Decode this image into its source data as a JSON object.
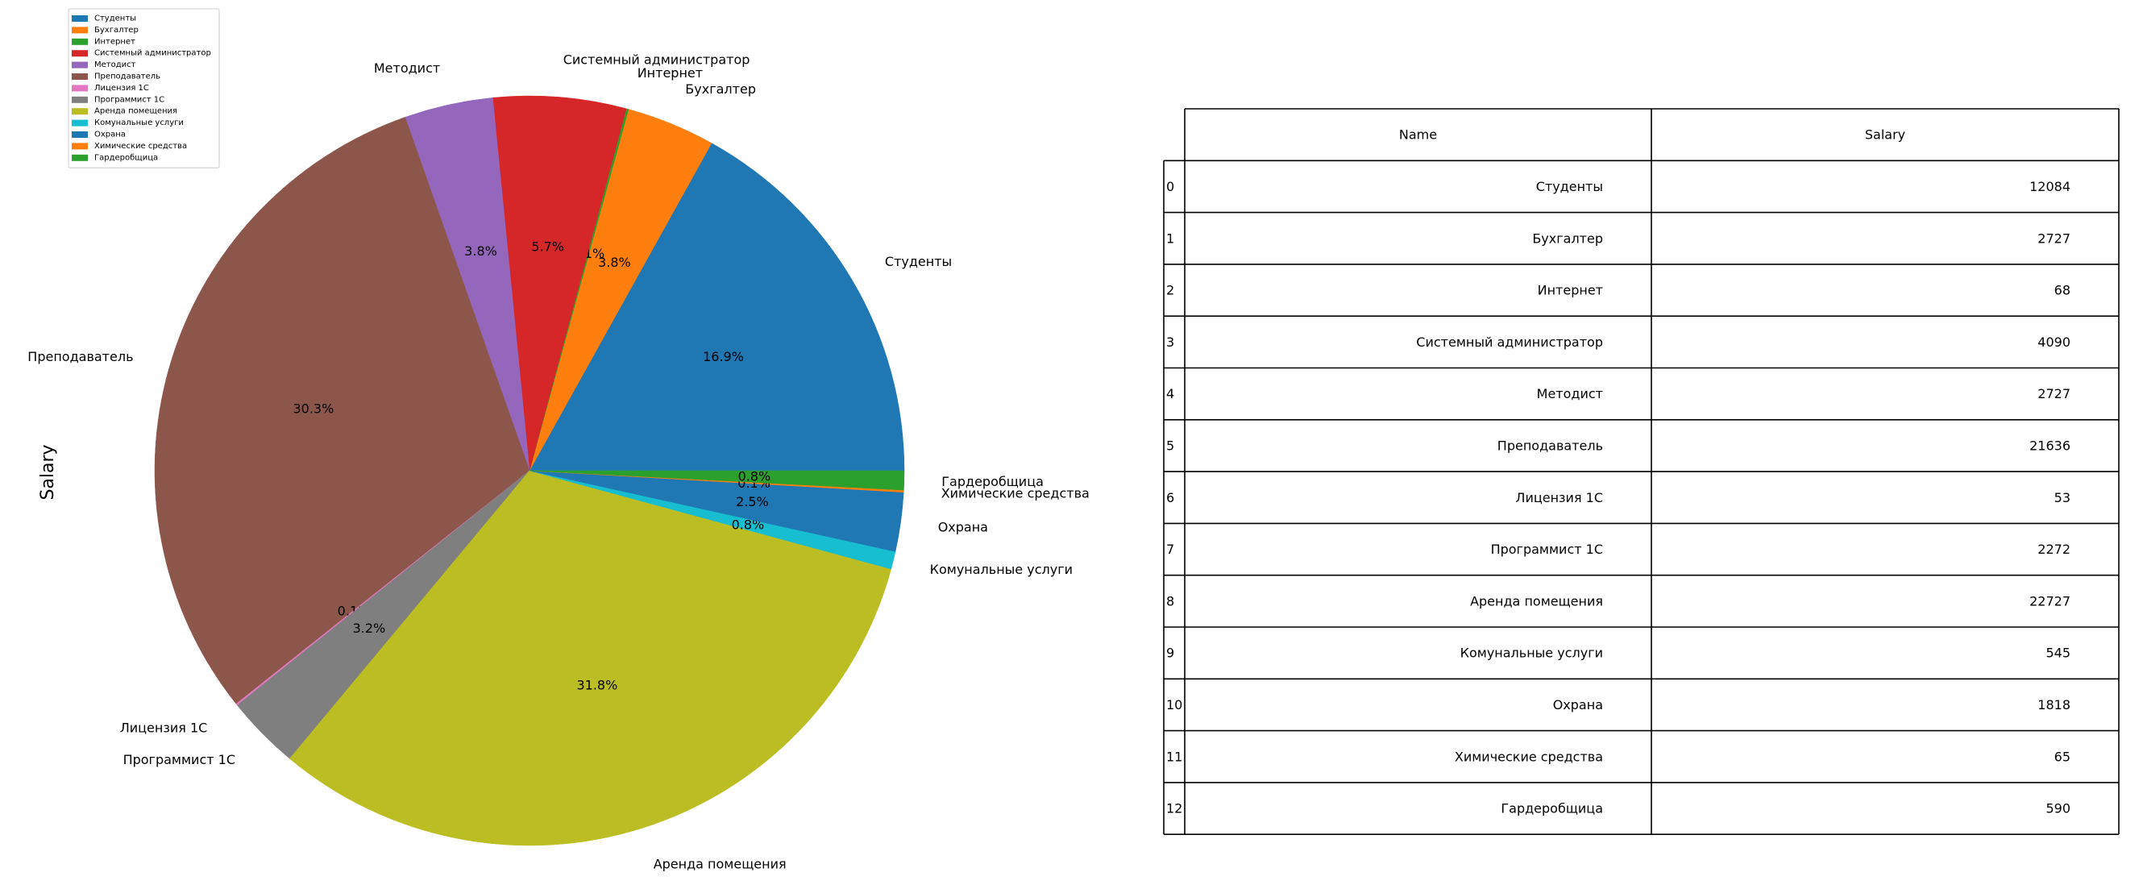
{
  "chart_data": [
    {
      "type": "pie",
      "ylabel": "Salary",
      "categories": [
        "Студенты",
        "Бухгалтер",
        "Интернет",
        "Системный администратор",
        "Методист",
        "Преподаватель",
        "Лицензия 1С",
        "Программист 1С",
        "Аренда помещения",
        "Комунальные услуги",
        "Охрана",
        "Химические средства",
        "Гардеробщица"
      ],
      "values": [
        12084,
        2727,
        68,
        4090,
        2727,
        21636,
        53,
        2272,
        22727,
        545,
        1818,
        65,
        590
      ],
      "percent_labels": [
        "16.9%",
        "3.8%",
        "0.1%",
        "5.7%",
        "3.8%",
        "30.3%",
        "0.1%",
        "3.2%",
        "31.8%",
        "0.8%",
        "2.5%",
        "0.1%",
        "0.8%"
      ],
      "colors": [
        "#1f77b4",
        "#ff7f0e",
        "#2ca02c",
        "#d62728",
        "#9467bd",
        "#8c564b",
        "#e377c2",
        "#7f7f7f",
        "#bcbd22",
        "#17becf",
        "#1f77b4",
        "#ff7f0e",
        "#2ca02c"
      ],
      "legend": {
        "placement": "top-left",
        "entries": [
          "Студенты",
          "Бухгалтер",
          "Интернет",
          "Системный администратор",
          "Методист",
          "Преподаватель",
          "Лицензия 1С",
          "Программист 1С",
          "Аренда помещения",
          "Комунальные услуги",
          "Охрана",
          "Химические средства",
          "Гардеробщица"
        ]
      }
    },
    {
      "type": "table",
      "columns": [
        "Name",
        "Salary"
      ],
      "row_index": [
        "0",
        "1",
        "2",
        "3",
        "4",
        "5",
        "6",
        "7",
        "8",
        "9",
        "10",
        "11",
        "12"
      ],
      "rows": [
        [
          "Студенты",
          "12084"
        ],
        [
          "Бухгалтер",
          "2727"
        ],
        [
          "Интернет",
          "68"
        ],
        [
          "Системный администратор",
          "4090"
        ],
        [
          "Методист",
          "2727"
        ],
        [
          "Преподаватель",
          "21636"
        ],
        [
          "Лицензия 1С",
          "53"
        ],
        [
          "Программист 1С",
          "2272"
        ],
        [
          "Аренда помещения",
          "22727"
        ],
        [
          "Комунальные услуги",
          "545"
        ],
        [
          "Охрана",
          "1818"
        ],
        [
          "Химические средства",
          "65"
        ],
        [
          "Гардеробщица",
          "590"
        ]
      ]
    }
  ]
}
